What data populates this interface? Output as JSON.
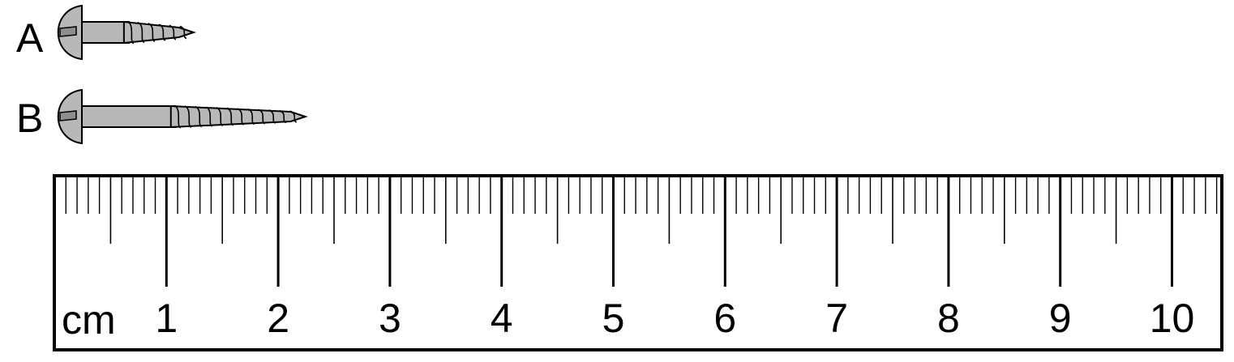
{
  "screws": [
    {
      "label": "A",
      "length_cm": 1.0
    },
    {
      "label": "B",
      "length_cm": 2.0
    }
  ],
  "ruler": {
    "unit_label": "cm",
    "numbers": [
      "1",
      "2",
      "3",
      "4",
      "5",
      "6",
      "7",
      "8",
      "9",
      "10"
    ],
    "max_cm": 10.4,
    "minor_divisions_per_cm": 10
  },
  "colors": {
    "ink": "#000000",
    "screw_fill": "#b8b8b8",
    "screw_dark": "#8f8f8f",
    "background": "#ffffff"
  }
}
